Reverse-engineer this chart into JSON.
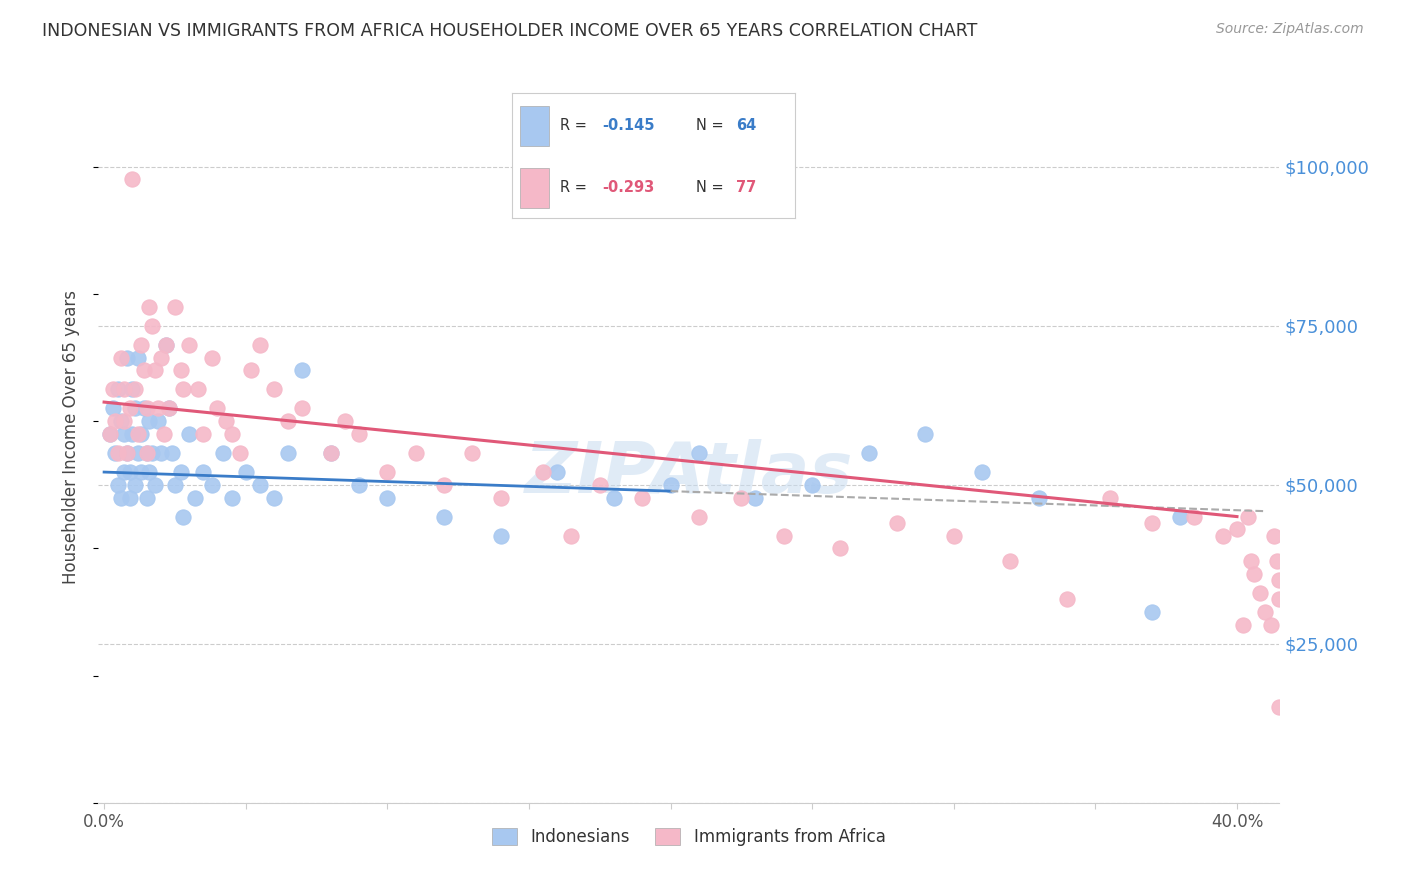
{
  "title": "INDONESIAN VS IMMIGRANTS FROM AFRICA HOUSEHOLDER INCOME OVER 65 YEARS CORRELATION CHART",
  "source": "Source: ZipAtlas.com",
  "ylabel": "Householder Income Over 65 years",
  "xlim": [
    -0.002,
    0.415
  ],
  "ylim": [
    0,
    115000
  ],
  "yticks": [
    0,
    25000,
    50000,
    75000,
    100000
  ],
  "ytick_labels": [
    "",
    "$25,000",
    "$50,000",
    "$75,000",
    "$100,000"
  ],
  "xticks": [
    0.0,
    0.05,
    0.1,
    0.15,
    0.2,
    0.25,
    0.3,
    0.35,
    0.4
  ],
  "xtick_labels_show": [
    "0.0%",
    "40.0%"
  ],
  "blue_color": "#A8C8F0",
  "pink_color": "#F5B8C8",
  "blue_line_color": "#3A7CC8",
  "pink_line_color": "#E05878",
  "right_axis_color": "#4A90D9",
  "watermark": "ZIPAtlas",
  "watermark_color": "#C8DCF0",
  "background_color": "#FFFFFF",
  "grid_color": "#CCCCCC",
  "title_color": "#333333",
  "blue_intercept": 52000,
  "blue_slope": -15000,
  "pink_intercept": 63000,
  "pink_slope": -45000,
  "indonesian_x": [
    0.002,
    0.003,
    0.004,
    0.005,
    0.005,
    0.006,
    0.006,
    0.007,
    0.007,
    0.008,
    0.008,
    0.009,
    0.009,
    0.01,
    0.01,
    0.011,
    0.011,
    0.012,
    0.012,
    0.013,
    0.013,
    0.014,
    0.015,
    0.015,
    0.016,
    0.016,
    0.017,
    0.018,
    0.019,
    0.02,
    0.022,
    0.023,
    0.024,
    0.025,
    0.027,
    0.028,
    0.03,
    0.032,
    0.035,
    0.038,
    0.042,
    0.045,
    0.05,
    0.055,
    0.06,
    0.065,
    0.07,
    0.08,
    0.09,
    0.1,
    0.12,
    0.14,
    0.16,
    0.18,
    0.2,
    0.21,
    0.23,
    0.25,
    0.27,
    0.29,
    0.31,
    0.33,
    0.37,
    0.38
  ],
  "indonesian_y": [
    58000,
    62000,
    55000,
    65000,
    50000,
    60000,
    48000,
    58000,
    52000,
    70000,
    55000,
    52000,
    48000,
    65000,
    58000,
    62000,
    50000,
    55000,
    70000,
    58000,
    52000,
    62000,
    55000,
    48000,
    60000,
    52000,
    55000,
    50000,
    60000,
    55000,
    72000,
    62000,
    55000,
    50000,
    52000,
    45000,
    58000,
    48000,
    52000,
    50000,
    55000,
    48000,
    52000,
    50000,
    48000,
    55000,
    68000,
    55000,
    50000,
    48000,
    45000,
    42000,
    52000,
    48000,
    50000,
    55000,
    48000,
    50000,
    55000,
    58000,
    52000,
    48000,
    30000,
    45000
  ],
  "africa_x": [
    0.002,
    0.003,
    0.004,
    0.005,
    0.006,
    0.007,
    0.007,
    0.008,
    0.009,
    0.01,
    0.011,
    0.012,
    0.013,
    0.014,
    0.015,
    0.015,
    0.016,
    0.017,
    0.018,
    0.019,
    0.02,
    0.021,
    0.022,
    0.023,
    0.025,
    0.027,
    0.028,
    0.03,
    0.033,
    0.035,
    0.038,
    0.04,
    0.043,
    0.045,
    0.048,
    0.052,
    0.055,
    0.06,
    0.065,
    0.07,
    0.08,
    0.085,
    0.09,
    0.1,
    0.11,
    0.12,
    0.13,
    0.14,
    0.155,
    0.165,
    0.175,
    0.19,
    0.21,
    0.225,
    0.24,
    0.26,
    0.28,
    0.3,
    0.32,
    0.34,
    0.355,
    0.37,
    0.385,
    0.395,
    0.4,
    0.402,
    0.404,
    0.405,
    0.406,
    0.408,
    0.41,
    0.412,
    0.413,
    0.414,
    0.415,
    0.415,
    0.415
  ],
  "africa_y": [
    58000,
    65000,
    60000,
    55000,
    70000,
    60000,
    65000,
    55000,
    62000,
    98000,
    65000,
    58000,
    72000,
    68000,
    62000,
    55000,
    78000,
    75000,
    68000,
    62000,
    70000,
    58000,
    72000,
    62000,
    78000,
    68000,
    65000,
    72000,
    65000,
    58000,
    70000,
    62000,
    60000,
    58000,
    55000,
    68000,
    72000,
    65000,
    60000,
    62000,
    55000,
    60000,
    58000,
    52000,
    55000,
    50000,
    55000,
    48000,
    52000,
    42000,
    50000,
    48000,
    45000,
    48000,
    42000,
    40000,
    44000,
    42000,
    38000,
    32000,
    48000,
    44000,
    45000,
    42000,
    43000,
    28000,
    45000,
    38000,
    36000,
    33000,
    30000,
    28000,
    42000,
    38000,
    35000,
    32000,
    15000
  ]
}
